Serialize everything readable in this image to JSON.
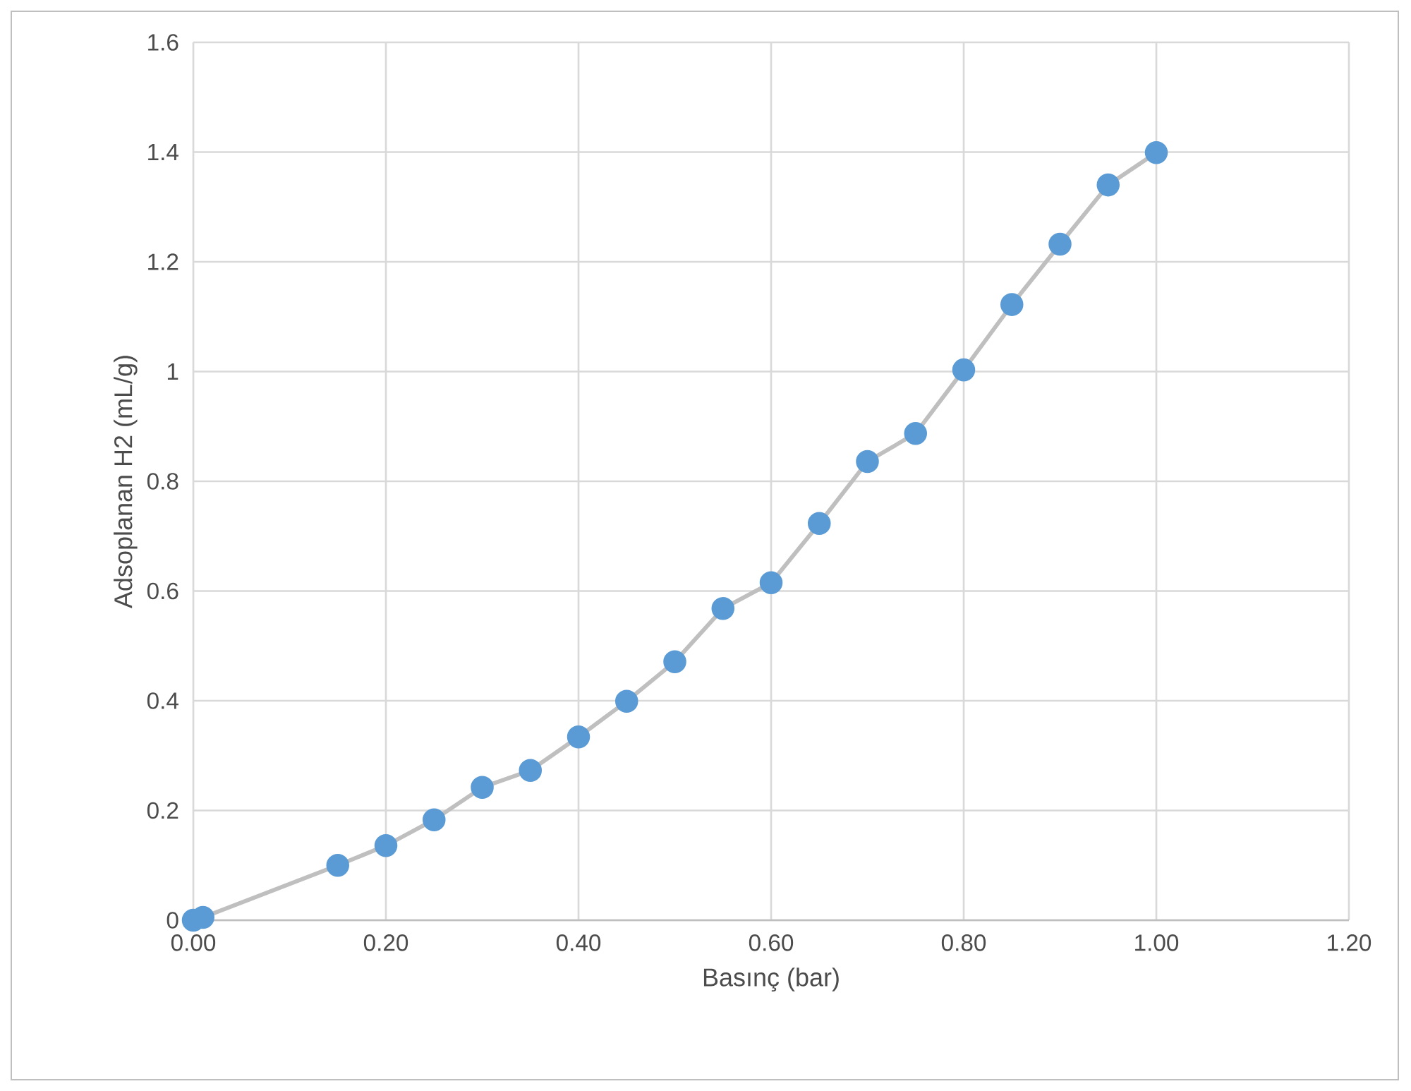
{
  "chart_data": {
    "type": "line",
    "xlabel": "Basınç (bar)",
    "ylabel": "Adsoplanan H2 (mL/g)",
    "x": [
      0.0,
      0.01,
      0.15,
      0.2,
      0.25,
      0.3,
      0.35,
      0.4,
      0.45,
      0.5,
      0.55,
      0.6,
      0.65,
      0.7,
      0.75,
      0.8,
      0.85,
      0.9,
      0.95,
      1.0
    ],
    "series": [
      {
        "color": "#5b9bd5",
        "values": [
          0.0,
          0.005,
          0.1,
          0.136,
          0.183,
          0.242,
          0.273,
          0.334,
          0.399,
          0.471,
          0.568,
          0.615,
          0.723,
          0.836,
          0.887,
          1.003,
          1.122,
          1.232,
          1.34,
          1.399
        ]
      }
    ],
    "xlim": [
      0,
      1.2
    ],
    "ylim": [
      0,
      1.6
    ],
    "xticks": [
      {
        "value": 0,
        "label": "0.00"
      },
      {
        "value": 0.2,
        "label": "0.20"
      },
      {
        "value": 0.4,
        "label": "0.40"
      },
      {
        "value": 0.6,
        "label": "0.60"
      },
      {
        "value": 0.8,
        "label": "0.80"
      },
      {
        "value": 1.0,
        "label": "1.00"
      },
      {
        "value": 1.2,
        "label": "1.20"
      }
    ],
    "yticks": [
      0,
      0.2,
      0.4,
      0.6,
      0.8,
      1,
      1.2,
      1.4,
      1.6
    ],
    "grid": true,
    "marker": "circle",
    "line_style": "solid"
  }
}
